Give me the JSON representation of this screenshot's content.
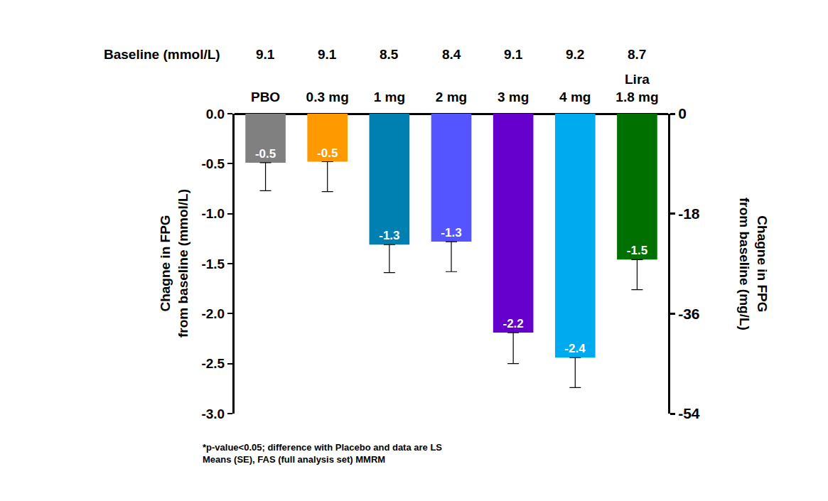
{
  "chart_data": {
    "type": "bar",
    "baseline_label": "Baseline (mmol/L)",
    "baseline_values": [
      9.1,
      9.1,
      8.5,
      8.4,
      9.1,
      9.2,
      8.7
    ],
    "categories": [
      "PBO",
      "0.3 mg",
      "1 mg",
      "2 mg",
      "3 mg",
      "4 mg",
      "Lira\n1.8 mg"
    ],
    "values": [
      -0.49,
      -0.48,
      -1.31,
      -1.28,
      -2.19,
      -2.44,
      -1.46
    ],
    "value_labels": [
      "-0.5",
      "-0.5",
      "-1.3",
      "-1.3",
      "-2.2",
      "-2.4",
      "-1.5"
    ],
    "error": [
      0.28,
      0.3,
      0.28,
      0.3,
      0.31,
      0.3,
      0.3
    ],
    "colors": [
      "#808080",
      "#ff9900",
      "#0080b0",
      "#5555ff",
      "#6600cc",
      "#00aaee",
      "#007000"
    ],
    "data_labels": true,
    "y_label": "Chagne in FPG\nfrom baseline (mmol/L)",
    "y2_label": "Chagne in FPG\nfrom baseline (mg/L)",
    "ylim": [
      -3,
      0
    ],
    "yticks": [
      {
        "value": 0,
        "label": "0.0"
      },
      -0.5,
      {
        "value": -1,
        "label": "-1.0"
      },
      -1.5,
      {
        "value": -2,
        "label": "-2.0"
      },
      -2.5,
      {
        "value": -3,
        "label": "-3.0"
      }
    ],
    "y2lim": [
      -54,
      0
    ],
    "y2ticks": [
      0,
      -18,
      -36,
      -54
    ],
    "grid": false,
    "footnote": "*p-value<0.05; difference with Placebo and data are LS\nMeans (SE), FAS (full analysis set) MMRM"
  }
}
